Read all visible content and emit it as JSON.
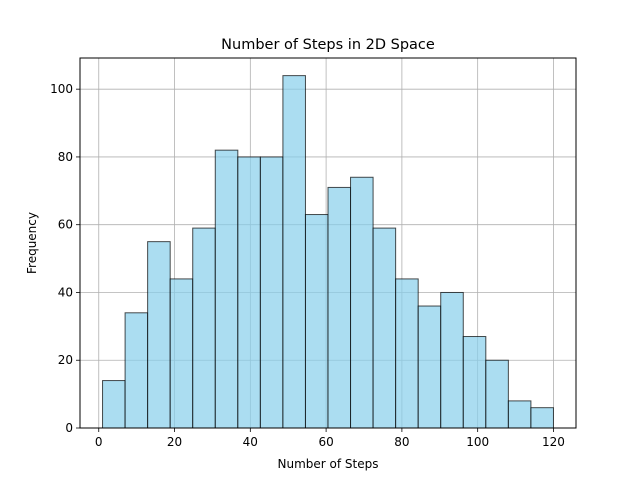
{
  "chart_data": {
    "type": "bar",
    "title": "Number of Steps in 2D Space",
    "xlabel": "Number of Steps",
    "ylabel": "Frequency",
    "bin_edges": [
      1,
      6.95,
      12.9,
      18.85,
      24.8,
      30.75,
      36.7,
      42.65,
      48.6,
      54.55,
      60.5,
      66.45,
      72.4,
      78.35,
      84.3,
      90.25,
      96.2,
      102.15,
      108.1,
      114.05,
      120
    ],
    "values": [
      14,
      34,
      55,
      44,
      59,
      82,
      80,
      80,
      104,
      63,
      71,
      74,
      59,
      44,
      36,
      40,
      27,
      20,
      8,
      6
    ],
    "xlim": [
      -4.95,
      125.95
    ],
    "ylim": [
      0,
      109.2
    ],
    "xticks": [
      0,
      20,
      40,
      60,
      80,
      100,
      120
    ],
    "yticks": [
      0,
      20,
      40,
      60,
      80,
      100
    ],
    "xtick_labels": [
      "0",
      "20",
      "40",
      "60",
      "80",
      "100",
      "120"
    ],
    "ytick_labels": [
      "0",
      "20",
      "40",
      "60",
      "80",
      "100"
    ],
    "grid": true,
    "bar_color": "#87CEEB",
    "bar_alpha": 0.7,
    "edge_color": "#000000"
  }
}
